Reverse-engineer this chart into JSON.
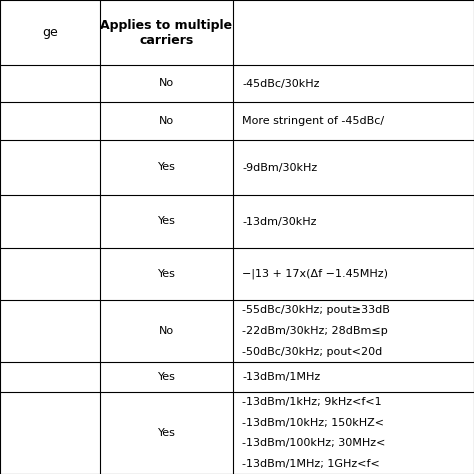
{
  "col2_header": "Applies to multiple\ncarriers",
  "rows": [
    {
      "col2": "No",
      "col3": "-45dBc/30kHz",
      "nlines": 1
    },
    {
      "col2": "No",
      "col3": "More stringent of -45dBc/",
      "nlines": 1
    },
    {
      "col2": "Yes",
      "col3": "-9dBm/30kHz",
      "nlines": 1
    },
    {
      "col2": "Yes",
      "col3": "-13dm/30kHz",
      "nlines": 1
    },
    {
      "col2": "Yes",
      "col3": "−|13 + 17x(Δf −1.45MHz)",
      "nlines": 1
    },
    {
      "col2": "No",
      "col3": "-55dBc/30kHz; pout≥33dB\n-22dBm/30kHz; 28dBm≤p\n-50dBc/30kHz; pout<20d",
      "nlines": 3
    },
    {
      "col2": "Yes",
      "col3": "-13dBm/1MHz",
      "nlines": 1
    },
    {
      "col2": "Yes",
      "col3": "-13dBm/1kHz; 9kHz<f<1\n-13dBm/10kHz; 150kHZ<\n-13dBm/100kHz; 30MHz<\n-13dBm/1MHz; 1GHz<f<",
      "nlines": 4
    }
  ],
  "bg_color": "#ffffff",
  "line_color": "#000000",
  "text_color": "#000000",
  "font_size": 8.0,
  "header_font_size": 9.0,
  "fig_width": 4.74,
  "fig_height": 4.74,
  "dpi": 100
}
